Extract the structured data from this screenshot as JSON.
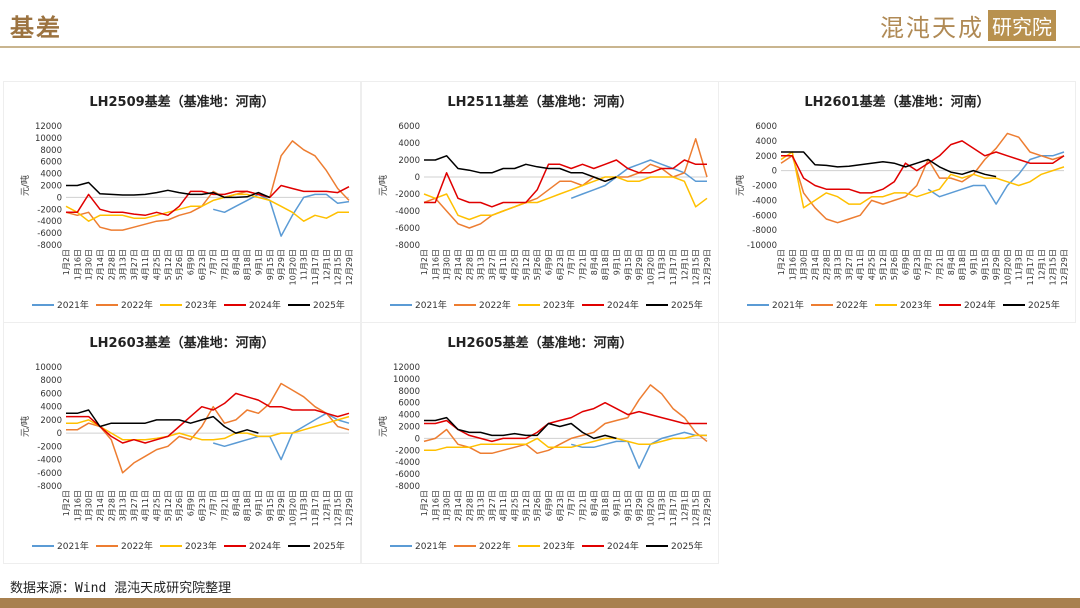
{
  "header": {
    "title": "基差",
    "logo_main": "混沌天成",
    "logo_tag": "研究院"
  },
  "footer": {
    "source": "数据来源：Wind 混沌天成研究院整理"
  },
  "colors": {
    "2021年": "#5b9bd5",
    "2022年": "#ed7d31",
    "2023年": "#ffc000",
    "2024年": "#e00000",
    "2025年": "#000000"
  },
  "chart_data": [
    {
      "type": "line",
      "title": "LH2509基差（基准地：河南）",
      "ylabel": "元/吨",
      "ylim": [
        -8000,
        12000
      ],
      "ystep": 2000,
      "categories": [
        "1月2日",
        "1月16日",
        "1月30日",
        "2月14日",
        "2月28日",
        "3月13日",
        "3月27日",
        "4月11日",
        "4月25日",
        "5月12日",
        "5月26日",
        "6月9日",
        "6月23日",
        "7月7日",
        "7月21日",
        "8月4日",
        "8月18日",
        "9月1日",
        "9月15日",
        "9月29日",
        "10月20日",
        "11月3日",
        "11月17日",
        "12月1日",
        "12月15日",
        "12月29日"
      ],
      "series": [
        {
          "name": "2021年",
          "values": [
            null,
            null,
            null,
            null,
            null,
            null,
            null,
            null,
            null,
            null,
            null,
            null,
            null,
            -2000,
            -2500,
            -1500,
            -500,
            500,
            -500,
            -6500,
            -3000,
            0,
            500,
            500,
            -1000,
            -700
          ]
        },
        {
          "name": "2022年",
          "values": [
            -2500,
            -3000,
            -2500,
            -5000,
            -5500,
            -5500,
            -5000,
            -4500,
            -4000,
            -3800,
            -3000,
            -2500,
            -1500,
            1000,
            0,
            500,
            1000,
            500,
            0,
            7000,
            9500,
            8000,
            7000,
            4500,
            1500,
            -500
          ]
        },
        {
          "name": "2023年",
          "values": [
            -1500,
            -2500,
            -4000,
            -3000,
            -3000,
            -3000,
            -3500,
            -3500,
            -3000,
            -2500,
            -2000,
            -1500,
            -1500,
            -500,
            0,
            500,
            500,
            0,
            -500,
            -1500,
            -2500,
            -4000,
            -3000,
            -3500,
            -2500,
            -2500
          ]
        },
        {
          "name": "2024年",
          "values": [
            -2500,
            -2500,
            500,
            -2000,
            -2500,
            -2500,
            -2800,
            -3000,
            -2500,
            -3000,
            -1500,
            1000,
            1000,
            500,
            500,
            1000,
            1000,
            500,
            0,
            2000,
            1500,
            1000,
            1000,
            1000,
            800,
            1800
          ]
        },
        {
          "name": "2025年",
          "values": [
            2000,
            2000,
            2500,
            600,
            500,
            400,
            400,
            500,
            800,
            1200,
            800,
            500,
            500,
            800,
            0,
            0,
            100,
            800,
            0,
            null,
            null,
            null,
            null,
            null,
            null,
            null
          ]
        }
      ]
    },
    {
      "type": "line",
      "title": "LH2511基差（基准地：河南）",
      "ylabel": "元/吨",
      "ylim": [
        -8000,
        6000
      ],
      "ystep": 2000,
      "categories": [
        "1月2日",
        "1月16日",
        "1月30日",
        "2月14日",
        "2月28日",
        "3月13日",
        "3月27日",
        "4月11日",
        "4月25日",
        "5月12日",
        "5月26日",
        "6月9日",
        "6月23日",
        "7月7日",
        "7月21日",
        "8月4日",
        "8月18日",
        "9月1日",
        "9月15日",
        "9月29日",
        "10月20日",
        "11月3日",
        "11月17日",
        "12月1日",
        "12月15日",
        "12月29日"
      ],
      "series": [
        {
          "name": "2021年",
          "values": [
            null,
            null,
            null,
            null,
            null,
            null,
            null,
            null,
            null,
            null,
            null,
            null,
            null,
            -2500,
            -2000,
            -1500,
            -1000,
            0,
            1000,
            1500,
            2000,
            1500,
            1000,
            500,
            -500,
            -500
          ]
        },
        {
          "name": "2022年",
          "values": [
            -3000,
            -2500,
            -4000,
            -5500,
            -6000,
            -5500,
            -4500,
            -4000,
            -3500,
            -3000,
            -2500,
            -1500,
            -500,
            -500,
            -1000,
            0,
            -500,
            0,
            0,
            500,
            1500,
            1000,
            0,
            500,
            4500,
            0
          ]
        },
        {
          "name": "2023年",
          "values": [
            -2000,
            -2500,
            -2000,
            -4500,
            -5000,
            -4500,
            -4500,
            -4000,
            -3500,
            -3000,
            -3000,
            -2500,
            -2000,
            -1500,
            -1000,
            -500,
            0,
            0,
            -500,
            -500,
            0,
            0,
            0,
            -500,
            -3500,
            -2500
          ]
        },
        {
          "name": "2024年",
          "values": [
            -3000,
            -3000,
            500,
            -2500,
            -3000,
            -3000,
            -3500,
            -3000,
            -3000,
            -3000,
            -1500,
            1500,
            1500,
            1000,
            1500,
            1000,
            1500,
            2000,
            1000,
            500,
            500,
            1000,
            1000,
            2000,
            1500,
            1500
          ]
        },
        {
          "name": "2025年",
          "values": [
            2000,
            2000,
            2500,
            1000,
            800,
            500,
            500,
            1000,
            1000,
            1500,
            1200,
            1000,
            1000,
            500,
            500,
            0,
            -500,
            0,
            null,
            null,
            null,
            null,
            null,
            null,
            null,
            null
          ]
        }
      ]
    },
    {
      "type": "line",
      "title": "LH2601基差（基准地：河南）",
      "ylabel": "元/吨",
      "ylim": [
        -10000,
        6000
      ],
      "ystep": 2000,
      "categories": [
        "1月2日",
        "1月16日",
        "1月30日",
        "2月14日",
        "2月28日",
        "3月13日",
        "3月27日",
        "4月11日",
        "4月25日",
        "5月12日",
        "5月26日",
        "6月9日",
        "6月23日",
        "7月7日",
        "7月21日",
        "8月4日",
        "8月18日",
        "9月1日",
        "9月15日",
        "9月29日",
        "10月20日",
        "11月3日",
        "11月17日",
        "12月1日",
        "12月15日",
        "12月29日"
      ],
      "series": [
        {
          "name": "2021年",
          "values": [
            null,
            null,
            null,
            null,
            null,
            null,
            null,
            null,
            null,
            null,
            null,
            null,
            null,
            -2500,
            -3500,
            -3000,
            -2500,
            -2000,
            -2000,
            -4500,
            -2000,
            -500,
            1500,
            2000,
            2000,
            2500
          ]
        },
        {
          "name": "2022年",
          "values": [
            1000,
            2000,
            -3000,
            -5000,
            -6500,
            -7000,
            -6500,
            -6000,
            -4000,
            -4500,
            -4000,
            -3500,
            -2000,
            1500,
            -1000,
            -1000,
            -1500,
            -500,
            1500,
            3000,
            5000,
            4500,
            2500,
            2000,
            1500,
            2000
          ]
        },
        {
          "name": "2023年",
          "values": [
            1500,
            2500,
            -5000,
            -4000,
            -3000,
            -3500,
            -4500,
            -4500,
            -3500,
            -3500,
            -3000,
            -3000,
            -3500,
            -3000,
            -2500,
            -500,
            -1000,
            -500,
            -1000,
            -1000,
            -1500,
            -2000,
            -1500,
            -500,
            0,
            500
          ]
        },
        {
          "name": "2024年",
          "values": [
            2000,
            2000,
            -1000,
            -2000,
            -2500,
            -2500,
            -2500,
            -3000,
            -3000,
            -2500,
            -1500,
            1000,
            0,
            1000,
            2000,
            3500,
            4000,
            3000,
            2000,
            2500,
            2000,
            1500,
            1000,
            1000,
            1000,
            2000
          ]
        },
        {
          "name": "2025年",
          "values": [
            2500,
            2500,
            2500,
            800,
            700,
            500,
            600,
            800,
            1000,
            1200,
            1000,
            500,
            1000,
            1500,
            500,
            -200,
            -500,
            0,
            -500,
            -800,
            null,
            null,
            null,
            null,
            null,
            null
          ]
        }
      ]
    },
    {
      "type": "line",
      "title": "LH2603基差（基准地：河南）",
      "ylabel": "元/吨",
      "ylim": [
        -8000,
        10000
      ],
      "ystep": 2000,
      "categories": [
        "1月2日",
        "1月16日",
        "1月30日",
        "2月14日",
        "2月28日",
        "3月13日",
        "3月27日",
        "4月11日",
        "4月25日",
        "5月12日",
        "5月26日",
        "6月9日",
        "6月23日",
        "7月7日",
        "7月21日",
        "8月4日",
        "8月18日",
        "9月1日",
        "9月15日",
        "9月29日",
        "10月20日",
        "11月3日",
        "11月17日",
        "12月1日",
        "12月15日",
        "12月29日"
      ],
      "series": [
        {
          "name": "2021年",
          "values": [
            null,
            null,
            null,
            null,
            null,
            null,
            null,
            null,
            null,
            null,
            null,
            null,
            null,
            -1500,
            -2000,
            -1500,
            -1000,
            -500,
            -500,
            -4000,
            0,
            1000,
            2000,
            3000,
            2000,
            1500
          ]
        },
        {
          "name": "2022年",
          "values": [
            500,
            500,
            1500,
            1000,
            -1000,
            -6000,
            -4500,
            -3500,
            -2500,
            -2000,
            -500,
            -1000,
            1000,
            4000,
            1500,
            2000,
            3500,
            3000,
            4500,
            7500,
            6500,
            5500,
            4000,
            3000,
            1000,
            500
          ]
        },
        {
          "name": "2023年",
          "values": [
            1500,
            1500,
            2000,
            1000,
            0,
            -1000,
            -1000,
            -1000,
            -800,
            -500,
            0,
            -500,
            -1000,
            -1000,
            -800,
            0,
            0,
            -500,
            -500,
            0,
            0,
            500,
            1000,
            1500,
            2000,
            2500
          ]
        },
        {
          "name": "2024年",
          "values": [
            2500,
            2500,
            2500,
            1000,
            -500,
            -1500,
            -1000,
            -1500,
            -1000,
            -500,
            1000,
            2500,
            4000,
            3500,
            4500,
            6000,
            5500,
            5000,
            4000,
            4000,
            3500,
            3500,
            3500,
            3000,
            2500,
            3000
          ]
        },
        {
          "name": "2025年",
          "values": [
            3000,
            3000,
            3500,
            1000,
            1500,
            1500,
            1500,
            1500,
            2000,
            2000,
            2000,
            1500,
            2000,
            2500,
            1000,
            0,
            500,
            0,
            null,
            null,
            null,
            null,
            null,
            null,
            null,
            null
          ]
        }
      ]
    },
    {
      "type": "line",
      "title": "LH2605基差（基准地：河南）",
      "ylabel": "元/吨",
      "ylim": [
        -8000,
        12000
      ],
      "ystep": 2000,
      "categories": [
        "1月2日",
        "1月16日",
        "1月30日",
        "2月14日",
        "2月28日",
        "3月13日",
        "3月27日",
        "4月11日",
        "4月25日",
        "5月12日",
        "5月26日",
        "6月9日",
        "6月23日",
        "7月7日",
        "7月21日",
        "8月4日",
        "8月18日",
        "9月1日",
        "9月15日",
        "9月29日",
        "10月20日",
        "11月3日",
        "11月17日",
        "12月1日",
        "12月15日",
        "12月29日"
      ],
      "series": [
        {
          "name": "2021年",
          "values": [
            null,
            null,
            null,
            null,
            null,
            null,
            null,
            null,
            null,
            null,
            null,
            null,
            null,
            -1000,
            -1500,
            -1500,
            -1000,
            -500,
            -500,
            -5000,
            -1000,
            0,
            500,
            1000,
            500,
            500
          ]
        },
        {
          "name": "2022年",
          "values": [
            -500,
            0,
            1500,
            -1000,
            -1500,
            -2500,
            -2500,
            -2000,
            -1500,
            -1000,
            -2500,
            -2000,
            -1000,
            0,
            500,
            1000,
            2500,
            3000,
            3500,
            6500,
            9000,
            7500,
            5000,
            3500,
            1000,
            -500
          ]
        },
        {
          "name": "2023年",
          "values": [
            -2000,
            -2000,
            -1500,
            -1500,
            -1500,
            -1000,
            -1000,
            -1000,
            -1000,
            -1000,
            0,
            -1500,
            -1500,
            -1500,
            -1000,
            -500,
            0,
            0,
            -500,
            -1000,
            -1000,
            -500,
            0,
            0,
            500,
            500
          ]
        },
        {
          "name": "2024年",
          "values": [
            2500,
            2500,
            3000,
            1500,
            500,
            0,
            -500,
            0,
            0,
            0,
            1000,
            2500,
            3000,
            3500,
            4500,
            5000,
            6000,
            5000,
            4000,
            4500,
            4000,
            3500,
            3000,
            2500,
            2500,
            2500
          ]
        },
        {
          "name": "2025年",
          "values": [
            3000,
            3000,
            3500,
            1500,
            1000,
            1000,
            500,
            500,
            800,
            500,
            500,
            2500,
            2000,
            2500,
            1000,
            0,
            500,
            0,
            null,
            null,
            null,
            null,
            null,
            null,
            null,
            null
          ]
        }
      ]
    }
  ]
}
